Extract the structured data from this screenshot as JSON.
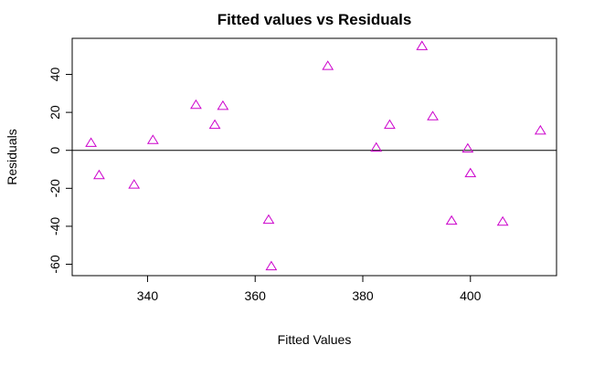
{
  "chart_data": {
    "type": "scatter",
    "title": "Fitted values vs Residuals",
    "xlabel": "Fitted Values",
    "ylabel": "Residuals",
    "xlim": [
      326,
      416
    ],
    "ylim": [
      -66,
      59
    ],
    "xticks": [
      340,
      360,
      380,
      400
    ],
    "yticks": [
      -60,
      -40,
      -20,
      0,
      20,
      40
    ],
    "point_color": "#CC00CC",
    "marker": "triangle",
    "reference_line_y": 0,
    "points": [
      {
        "x": 329.5,
        "y": 4
      },
      {
        "x": 331.0,
        "y": -13
      },
      {
        "x": 337.5,
        "y": -18
      },
      {
        "x": 341.0,
        "y": 5.5
      },
      {
        "x": 349.0,
        "y": 24
      },
      {
        "x": 352.5,
        "y": 13.5
      },
      {
        "x": 354.0,
        "y": 23.5
      },
      {
        "x": 362.5,
        "y": -36.5
      },
      {
        "x": 363.0,
        "y": -61
      },
      {
        "x": 373.5,
        "y": 44.5
      },
      {
        "x": 382.5,
        "y": 1.5
      },
      {
        "x": 385.0,
        "y": 13.5
      },
      {
        "x": 391.0,
        "y": 55
      },
      {
        "x": 393.0,
        "y": 18
      },
      {
        "x": 396.5,
        "y": -37
      },
      {
        "x": 399.5,
        "y": 1
      },
      {
        "x": 400.0,
        "y": -12
      },
      {
        "x": 406.0,
        "y": -37.5
      },
      {
        "x": 413.0,
        "y": 10.5
      }
    ]
  }
}
